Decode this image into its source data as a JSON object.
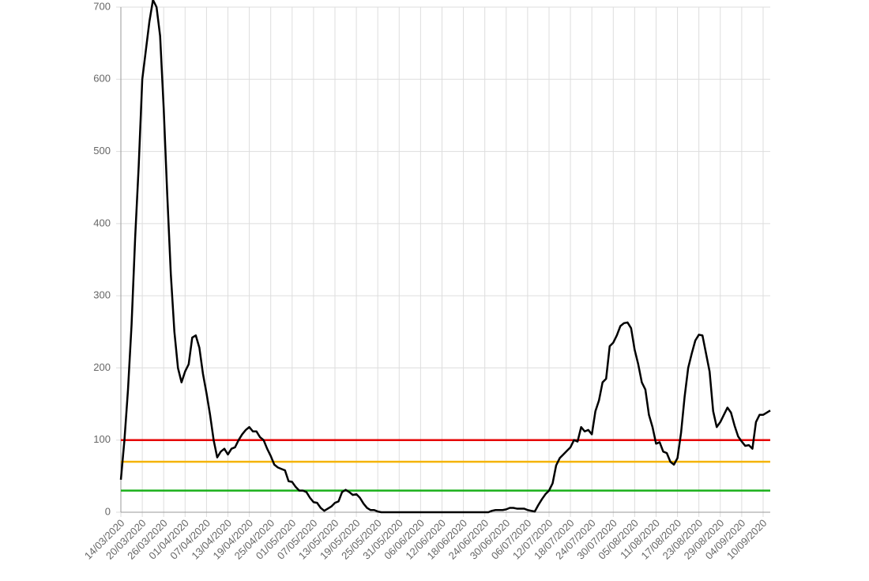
{
  "chart_data": {
    "type": "line",
    "categories": [
      "14/03/2020",
      null,
      null,
      null,
      null,
      null,
      "20/03/2020",
      null,
      null,
      null,
      null,
      null,
      "26/03/2020",
      null,
      null,
      null,
      null,
      null,
      "01/04/2020",
      null,
      null,
      null,
      null,
      null,
      "07/04/2020",
      null,
      null,
      null,
      null,
      null,
      "13/04/2020",
      null,
      null,
      null,
      null,
      null,
      "19/04/2020",
      null,
      null,
      null,
      null,
      null,
      "25/04/2020",
      null,
      null,
      null,
      null,
      null,
      "01/05/2020",
      null,
      null,
      null,
      null,
      null,
      "07/05/2020",
      null,
      null,
      null,
      null,
      null,
      "13/05/2020",
      null,
      null,
      null,
      null,
      null,
      "19/05/2020",
      null,
      null,
      null,
      null,
      null,
      "25/05/2020",
      null,
      null,
      null,
      null,
      null,
      "31/05/2020",
      null,
      null,
      null,
      null,
      null,
      "06/06/2020",
      null,
      null,
      null,
      null,
      null,
      "12/06/2020",
      null,
      null,
      null,
      null,
      null,
      "18/06/2020",
      null,
      null,
      null,
      null,
      null,
      "24/06/2020",
      null,
      null,
      null,
      null,
      null,
      "30/06/2020",
      null,
      null,
      null,
      null,
      null,
      "06/07/2020",
      null,
      null,
      null,
      null,
      null,
      "12/07/2020",
      null,
      null,
      null,
      null,
      null,
      "18/07/2020",
      null,
      null,
      null,
      null,
      null,
      "24/07/2020",
      null,
      null,
      null,
      null,
      null,
      "30/07/2020",
      null,
      null,
      null,
      null,
      null,
      "05/08/2020",
      null,
      null,
      null,
      null,
      null,
      "11/08/2020",
      null,
      null,
      null,
      null,
      null,
      "17/08/2020",
      null,
      null,
      null,
      null,
      null,
      "23/08/2020",
      null,
      null,
      null,
      null,
      null,
      "29/08/2020",
      null,
      null,
      null,
      null,
      null,
      "04/09/2020",
      null,
      null,
      null,
      null,
      null,
      "10/09/2020",
      null,
      null
    ],
    "values": [
      45,
      100,
      170,
      260,
      380,
      480,
      600,
      640,
      680,
      710,
      700,
      660,
      560,
      440,
      330,
      250,
      200,
      180,
      195,
      205,
      242,
      245,
      228,
      192,
      165,
      135,
      100,
      76,
      84,
      88,
      80,
      88,
      90,
      100,
      108,
      114,
      118,
      112,
      112,
      104,
      100,
      88,
      78,
      66,
      62,
      60,
      58,
      43,
      42,
      35,
      30,
      30,
      28,
      20,
      14,
      13,
      6,
      2,
      5,
      8,
      13,
      15,
      28,
      31,
      28,
      24,
      25,
      20,
      12,
      6,
      3,
      3,
      1,
      0,
      0,
      0,
      0,
      0,
      0,
      0,
      0,
      0,
      0,
      0,
      0,
      0,
      0,
      0,
      0,
      0,
      0,
      0,
      0,
      0,
      0,
      0,
      0,
      0,
      0,
      0,
      0,
      0,
      0,
      0,
      2,
      3,
      3,
      3,
      4,
      6,
      6,
      5,
      5,
      5,
      3,
      2,
      1,
      10,
      18,
      25,
      30,
      40,
      65,
      75,
      80,
      85,
      90,
      100,
      98,
      118,
      112,
      114,
      108,
      140,
      155,
      180,
      185,
      230,
      235,
      245,
      258,
      262,
      263,
      255,
      225,
      205,
      180,
      170,
      135,
      118,
      95,
      97,
      84,
      82,
      70,
      66,
      75,
      110,
      160,
      200,
      220,
      238,
      246,
      245,
      220,
      195,
      140,
      118,
      125,
      135,
      145,
      138,
      120,
      105,
      98,
      92,
      93,
      88,
      125,
      135,
      135,
      138,
      141
    ],
    "color": "#000000",
    "reference_lines": [
      {
        "value": 100,
        "color": "#e60000"
      },
      {
        "value": 70,
        "color": "#f5b400"
      },
      {
        "value": 30,
        "color": "#1ab01a"
      }
    ],
    "ylim": [
      0,
      700
    ],
    "yticks": [
      0,
      100,
      200,
      300,
      400,
      500,
      600,
      700
    ],
    "grid": true
  }
}
